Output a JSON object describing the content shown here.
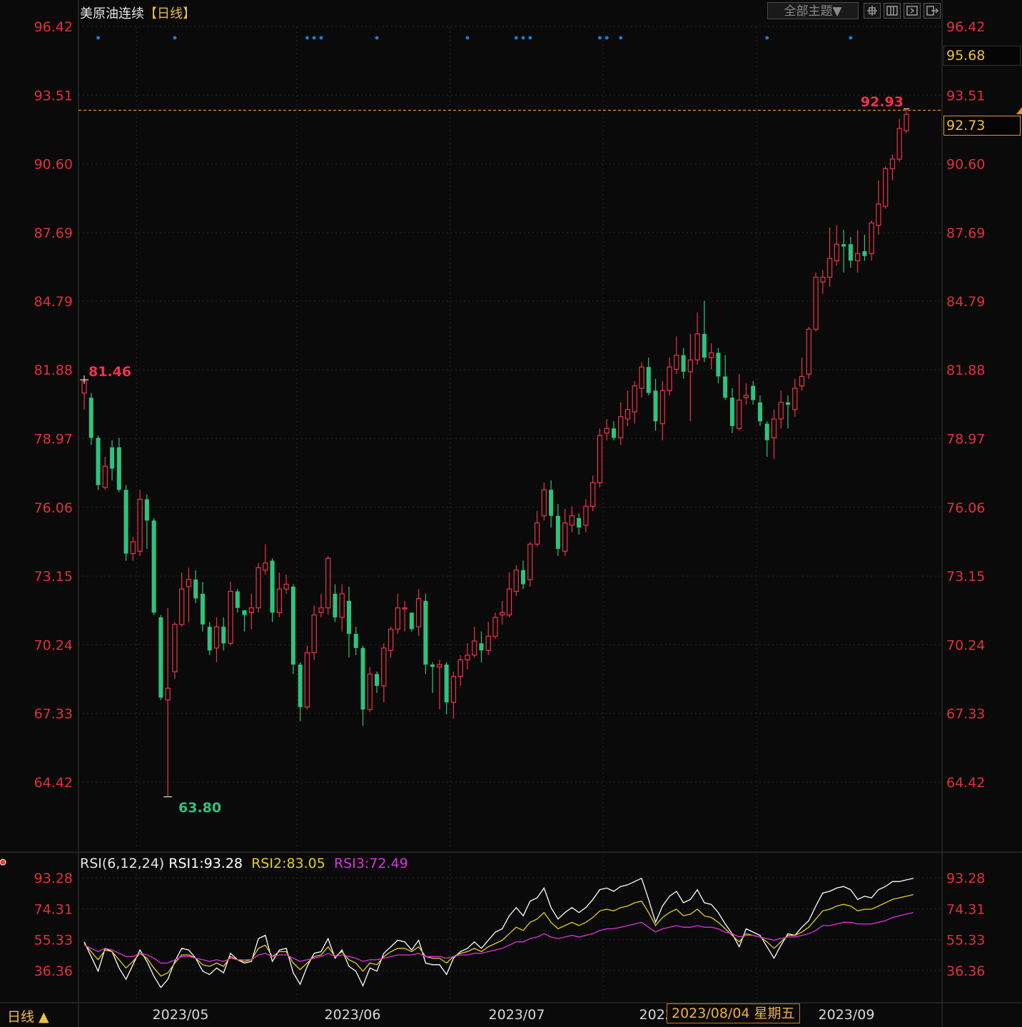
{
  "header": {
    "instrument": "美原油连续",
    "period_label": "【日线】",
    "theme_button": "全部主题▼",
    "toolbar_icons": [
      "crosshair-icon",
      "zoom-fit-icon",
      "next-page-icon",
      "exit-icon"
    ]
  },
  "price_axis": {
    "ticks": [
      "96.42",
      "93.51",
      "90.60",
      "87.69",
      "84.79",
      "81.88",
      "78.97",
      "76.06",
      "73.15",
      "70.24",
      "67.33",
      "64.42"
    ],
    "high_box": "95.68",
    "last_box": "92.73"
  },
  "annotations": {
    "high_label": "92.93",
    "start_label": "81.46",
    "low_label": "63.80"
  },
  "rsi": {
    "name": "RSI(6,12,24)",
    "rsi1": "RSI1:93.28",
    "rsi2": "RSI2:83.05",
    "rsi3": "RSI3:72.49",
    "ticks": [
      "93.28",
      "74.31",
      "55.33",
      "36.36"
    ]
  },
  "x_axis": {
    "labels": [
      "2023/05",
      "2023/06",
      "2023/07",
      "2023/08",
      "2023/09"
    ],
    "hover_date": "2023/08/04 星期五",
    "period_button": "日线 ▲"
  },
  "colors": {
    "up": "#f0324a",
    "down": "#2ec27e",
    "axis_text": "#e0303a",
    "rsi1": "#ffffff",
    "rsi2": "#e0d020",
    "rsi3": "#e030e0",
    "last_line": "#e0902a",
    "marker": "#1e7ad0"
  },
  "chart_data": [
    {
      "type": "candlestick",
      "title": "美原油连续【日线】",
      "ylim": [
        61.5,
        97.0
      ],
      "y_ticks": [
        96.42,
        93.51,
        90.6,
        87.69,
        84.79,
        81.88,
        78.97,
        76.06,
        73.15,
        70.24,
        67.33,
        64.42
      ],
      "x_labels": [
        "2023/05",
        "2023/06",
        "2023/07",
        "2023/08",
        "2023/09"
      ],
      "last_price": 92.73,
      "period_high": 92.93,
      "period_low": 63.8,
      "candles": [
        [
          80.9,
          81.4,
          81.5,
          80.2
        ],
        [
          80.7,
          79.0,
          80.9,
          78.7
        ],
        [
          79.0,
          77.0,
          79.1,
          76.8
        ],
        [
          76.9,
          77.8,
          78.2,
          76.8
        ],
        [
          78.6,
          77.7,
          78.9,
          77.2
        ],
        [
          78.6,
          76.8,
          79.0,
          76.7
        ],
        [
          76.8,
          74.1,
          77.0,
          73.8
        ],
        [
          74.1,
          74.6,
          74.8,
          73.8
        ],
        [
          74.2,
          76.4,
          76.8,
          74.0
        ],
        [
          76.4,
          75.5,
          76.6,
          74.3
        ],
        [
          75.5,
          71.6,
          75.6,
          71.5
        ],
        [
          71.4,
          68.0,
          71.5,
          67.9
        ],
        [
          67.9,
          68.4,
          71.8,
          63.8
        ],
        [
          69.1,
          71.1,
          71.2,
          68.8
        ],
        [
          71.1,
          72.6,
          73.3,
          71.0
        ],
        [
          72.7,
          73.0,
          73.5,
          71.2
        ],
        [
          73.0,
          72.2,
          73.4,
          72.0
        ],
        [
          72.4,
          71.1,
          72.9,
          70.8
        ],
        [
          71.0,
          70.0,
          71.2,
          69.8
        ],
        [
          70.1,
          71.0,
          71.4,
          69.5
        ],
        [
          71.0,
          70.3,
          71.4,
          70.0
        ],
        [
          70.3,
          72.5,
          72.9,
          70.2
        ],
        [
          72.5,
          71.8,
          72.6,
          71.6
        ],
        [
          71.7,
          71.5,
          71.7,
          70.8
        ],
        [
          71.6,
          71.8,
          72.4,
          70.9
        ],
        [
          71.8,
          73.5,
          73.7,
          71.6
        ],
        [
          73.4,
          73.7,
          74.5,
          73.2
        ],
        [
          73.8,
          71.6,
          73.9,
          71.2
        ],
        [
          71.6,
          72.6,
          73.3,
          71.4
        ],
        [
          72.6,
          72.8,
          73.2,
          72.4
        ],
        [
          72.7,
          69.4,
          72.8,
          69.0
        ],
        [
          69.4,
          67.6,
          69.5,
          67.0
        ],
        [
          67.6,
          69.9,
          70.2,
          67.5
        ],
        [
          69.9,
          71.5,
          71.9,
          69.6
        ],
        [
          71.6,
          71.8,
          72.4,
          71.4
        ],
        [
          71.8,
          73.9,
          74.0,
          71.5
        ],
        [
          72.4,
          71.4,
          72.8,
          71.2
        ],
        [
          71.4,
          72.4,
          72.8,
          70.8
        ],
        [
          72.1,
          70.7,
          72.7,
          69.7
        ],
        [
          70.7,
          70.1,
          71.0,
          69.8
        ],
        [
          70.1,
          67.5,
          70.2,
          66.8
        ],
        [
          67.5,
          69.0,
          69.3,
          67.4
        ],
        [
          69.0,
          68.5,
          69.1,
          68.2
        ],
        [
          68.5,
          70.1,
          70.3,
          67.8
        ],
        [
          70.0,
          70.9,
          71.0,
          69.7
        ],
        [
          70.9,
          71.8,
          72.4,
          70.7
        ],
        [
          71.8,
          71.8,
          72.1,
          70.8
        ],
        [
          71.6,
          70.9,
          71.6,
          70.8
        ],
        [
          71.0,
          72.2,
          72.6,
          70.6
        ],
        [
          72.1,
          69.4,
          72.4,
          69.0
        ],
        [
          69.4,
          69.3,
          69.5,
          68.2
        ],
        [
          69.3,
          69.4,
          69.6,
          67.5
        ],
        [
          69.4,
          67.8,
          69.5,
          67.3
        ],
        [
          67.8,
          68.9,
          69.1,
          67.1
        ],
        [
          68.9,
          69.6,
          69.8,
          68.5
        ],
        [
          69.6,
          69.8,
          70.3,
          69.2
        ],
        [
          69.8,
          70.4,
          71.0,
          69.7
        ],
        [
          70.3,
          70.0,
          70.8,
          69.5
        ],
        [
          70.0,
          70.6,
          71.2,
          69.8
        ],
        [
          70.6,
          71.4,
          71.6,
          70.5
        ],
        [
          71.5,
          71.6,
          72.1,
          71.1
        ],
        [
          71.5,
          72.6,
          73.3,
          71.4
        ],
        [
          72.5,
          73.4,
          73.6,
          72.3
        ],
        [
          73.4,
          72.8,
          73.8,
          72.6
        ],
        [
          73.0,
          74.5,
          74.6,
          72.7
        ],
        [
          74.5,
          75.4,
          75.9,
          74.4
        ],
        [
          75.7,
          76.8,
          77.1,
          75.5
        ],
        [
          76.8,
          75.7,
          77.2,
          75.2
        ],
        [
          75.7,
          74.3,
          76.2,
          74.0
        ],
        [
          74.2,
          75.4,
          76.0,
          74.0
        ],
        [
          75.3,
          75.7,
          76.1,
          75.0
        ],
        [
          75.6,
          75.2,
          75.8,
          74.9
        ],
        [
          75.3,
          76.1,
          76.4,
          75.0
        ],
        [
          76.1,
          77.1,
          77.4,
          75.9
        ],
        [
          77.1,
          79.1,
          79.4,
          76.9
        ],
        [
          79.2,
          79.4,
          79.8,
          78.9
        ],
        [
          79.4,
          79.0,
          79.7,
          78.9
        ],
        [
          79.0,
          79.9,
          80.5,
          78.7
        ],
        [
          79.8,
          80.2,
          81.0,
          79.5
        ],
        [
          80.1,
          81.2,
          81.4,
          79.6
        ],
        [
          81.1,
          82.0,
          82.2,
          80.7
        ],
        [
          82.0,
          80.9,
          82.4,
          80.8
        ],
        [
          81.0,
          79.7,
          81.5,
          79.3
        ],
        [
          79.6,
          81.0,
          81.4,
          78.9
        ],
        [
          81.0,
          82.0,
          82.4,
          80.8
        ],
        [
          81.9,
          82.5,
          83.3,
          81.7
        ],
        [
          82.5,
          81.8,
          82.8,
          81.5
        ],
        [
          81.8,
          82.3,
          83.4,
          79.7
        ],
        [
          82.3,
          83.4,
          84.3,
          82.1
        ],
        [
          83.4,
          82.4,
          84.8,
          82.2
        ],
        [
          82.4,
          82.6,
          83.0,
          81.9
        ],
        [
          82.6,
          81.6,
          82.8,
          81.3
        ],
        [
          81.6,
          80.7,
          82.5,
          80.6
        ],
        [
          80.7,
          79.5,
          81.1,
          79.2
        ],
        [
          79.4,
          80.6,
          81.7,
          79.3
        ],
        [
          80.7,
          80.8,
          81.3,
          80.4
        ],
        [
          81.2,
          80.6,
          81.4,
          80.4
        ],
        [
          80.5,
          79.7,
          80.8,
          79.5
        ],
        [
          79.6,
          78.9,
          79.7,
          78.2
        ],
        [
          79.0,
          79.8,
          80.2,
          78.1
        ],
        [
          79.8,
          80.5,
          81.0,
          79.4
        ],
        [
          80.5,
          80.4,
          80.8,
          79.4
        ],
        [
          80.2,
          81.1,
          81.5,
          79.9
        ],
        [
          81.2,
          81.6,
          82.4,
          81.0
        ],
        [
          81.7,
          83.6,
          83.7,
          81.5
        ],
        [
          83.6,
          85.8,
          86.0,
          83.5
        ],
        [
          85.6,
          85.8,
          86.1,
          85.1
        ],
        [
          85.8,
          86.6,
          87.9,
          85.4
        ],
        [
          86.5,
          87.2,
          88.0,
          86.3
        ],
        [
          87.2,
          87.1,
          87.8,
          86.0
        ],
        [
          87.2,
          86.5,
          87.5,
          86.2
        ],
        [
          86.5,
          86.8,
          87.8,
          86.0
        ],
        [
          86.9,
          86.7,
          87.6,
          86.5
        ],
        [
          86.8,
          88.1,
          88.2,
          86.5
        ],
        [
          88.0,
          88.9,
          89.9,
          87.6
        ],
        [
          88.8,
          90.4,
          90.5,
          88.7
        ],
        [
          90.4,
          90.8,
          91.0,
          89.9
        ],
        [
          90.8,
          92.1,
          92.5,
          90.7
        ],
        [
          92.0,
          92.7,
          92.93,
          91.9
        ]
      ]
    },
    {
      "type": "line",
      "title": "RSI(6,12,24)",
      "ylim": [
        20,
        100
      ],
      "y_ticks": [
        93.28,
        74.31,
        55.33,
        36.36
      ],
      "series": [
        {
          "name": "RSI1",
          "values": [
            54,
            45,
            36,
            50,
            48,
            38,
            31,
            40,
            49,
            42,
            33,
            26,
            31,
            42,
            50,
            49,
            44,
            36,
            34,
            38,
            35,
            47,
            43,
            41,
            42,
            56,
            58,
            42,
            49,
            50,
            35,
            28,
            39,
            47,
            48,
            56,
            44,
            49,
            39,
            36,
            27,
            38,
            36,
            47,
            51,
            55,
            54,
            49,
            55,
            41,
            40,
            40,
            34,
            44,
            48,
            50,
            54,
            50,
            55,
            60,
            62,
            70,
            75,
            70,
            79,
            81,
            87,
            75,
            68,
            72,
            75,
            72,
            75,
            80,
            86,
            87,
            85,
            88,
            89,
            91,
            93,
            80,
            66,
            76,
            82,
            85,
            78,
            80,
            86,
            78,
            77,
            72,
            65,
            59,
            51,
            62,
            60,
            58,
            51,
            44,
            52,
            59,
            58,
            63,
            67,
            76,
            84,
            85,
            87,
            88,
            86,
            80,
            82,
            81,
            86,
            88,
            91,
            91,
            92,
            93
          ]
        },
        {
          "name": "RSI2",
          "values": [
            53,
            48,
            43,
            49,
            48,
            43,
            38,
            42,
            47,
            44,
            38,
            33,
            35,
            41,
            46,
            46,
            44,
            40,
            39,
            41,
            39,
            45,
            43,
            42,
            43,
            50,
            52,
            45,
            48,
            48,
            41,
            37,
            41,
            45,
            46,
            51,
            45,
            48,
            43,
            41,
            36,
            41,
            40,
            45,
            48,
            50,
            50,
            48,
            51,
            45,
            44,
            44,
            41,
            45,
            47,
            48,
            50,
            48,
            51,
            53,
            55,
            59,
            63,
            61,
            66,
            68,
            72,
            66,
            62,
            64,
            66,
            64,
            66,
            69,
            73,
            74,
            73,
            75,
            76,
            78,
            79,
            72,
            64,
            69,
            72,
            74,
            70,
            71,
            74,
            70,
            69,
            66,
            62,
            58,
            54,
            59,
            58,
            57,
            54,
            50,
            54,
            58,
            58,
            60,
            63,
            68,
            73,
            74,
            76,
            77,
            76,
            73,
            74,
            74,
            76,
            78,
            80,
            81,
            82,
            83
          ]
        },
        {
          "name": "RSI3",
          "values": [
            52,
            50,
            48,
            50,
            49,
            47,
            45,
            45,
            47,
            46,
            44,
            41,
            41,
            43,
            45,
            45,
            44,
            43,
            42,
            43,
            42,
            44,
            43,
            43,
            43,
            46,
            47,
            45,
            46,
            46,
            44,
            42,
            43,
            44,
            45,
            47,
            45,
            46,
            45,
            44,
            42,
            43,
            43,
            44,
            45,
            46,
            46,
            46,
            47,
            45,
            45,
            45,
            44,
            45,
            46,
            46,
            47,
            47,
            48,
            49,
            50,
            52,
            54,
            54,
            56,
            57,
            59,
            57,
            56,
            57,
            58,
            57,
            58,
            59,
            61,
            62,
            62,
            63,
            64,
            65,
            66,
            63,
            60,
            62,
            63,
            64,
            63,
            63,
            64,
            63,
            63,
            62,
            60,
            59,
            57,
            58,
            58,
            57,
            56,
            55,
            56,
            57,
            57,
            58,
            59,
            61,
            64,
            64,
            65,
            66,
            66,
            65,
            65,
            65,
            66,
            67,
            69,
            70,
            71,
            72
          ]
        }
      ]
    }
  ]
}
